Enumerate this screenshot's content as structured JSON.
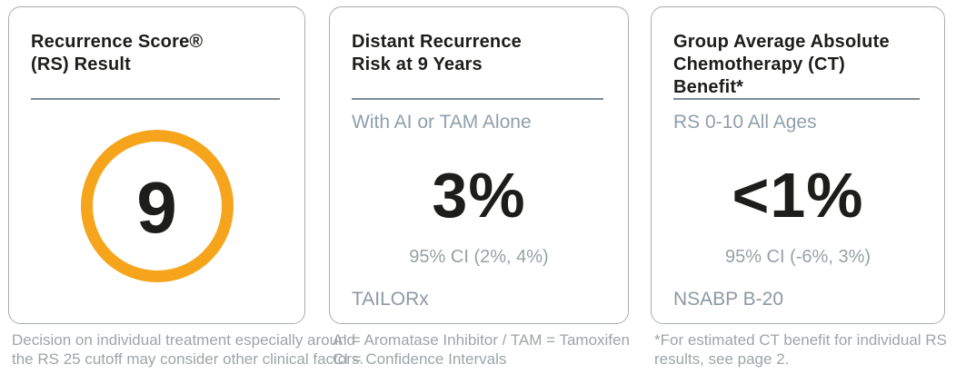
{
  "colors": {
    "accent_ring": "#f7a41d",
    "divider": "#7d8c99",
    "title_text": "#1d1d1b",
    "muted_text": "#9fa4a8",
    "subtitle_text": "#8fa0ac",
    "card_border": "#a9adb0"
  },
  "cards": [
    {
      "title_lines": [
        "Recurrence Score®",
        "(RS) Result"
      ],
      "score": "9",
      "footnote_lines": [
        "Decision on individual treatment especially around",
        "the RS 25 cutoff may consider other clinical factors."
      ]
    },
    {
      "title_lines": [
        "Distant Recurrence",
        "Risk at 9 Years"
      ],
      "subtitle": "With AI or TAM Alone",
      "value": "3%",
      "ci": "95% CI (2%, 4%)",
      "study": "TAILORx",
      "footnote_lines": [
        "AI = Aromatase Inhibitor / TAM = Tamoxifen",
        "CI = Confidence Intervals"
      ]
    },
    {
      "title_lines": [
        "Group Average Absolute",
        "Chemotherapy (CT)",
        "Benefit*"
      ],
      "subtitle": "RS 0-10 All Ages",
      "value": "<1%",
      "ci": "95% CI (-6%, 3%)",
      "study": "NSABP B-20",
      "footnote_lines": [
        "*For estimated CT benefit for individual RS",
        "results, see page 2."
      ]
    }
  ]
}
